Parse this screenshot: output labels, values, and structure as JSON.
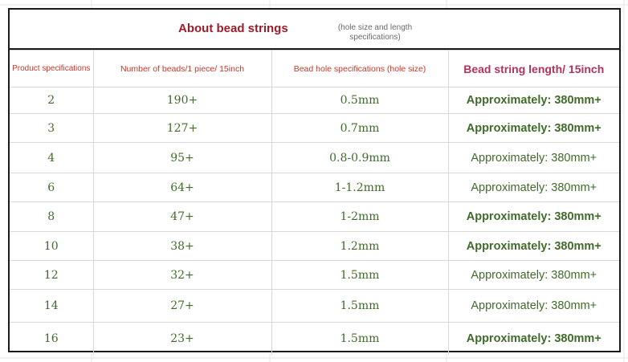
{
  "title": {
    "main": "About bead strings",
    "sub": "(hole size and length specifications)"
  },
  "headers": {
    "spec": "Product specifications",
    "beads": "Number of beads/1 piece/ 15inch",
    "hole": "Bead hole specifications (hole size)",
    "length": "Bead string length/ 15inch"
  },
  "rows": [
    {
      "spec": "2",
      "beads": "190+",
      "hole": "0.5mm",
      "length": "Approximately: 380mm+"
    },
    {
      "spec": "3",
      "beads": "127+",
      "hole": "0.7mm",
      "length": "Approximately: 380mm+"
    },
    {
      "spec": "4",
      "beads": "95+",
      "hole": "0.8-0.9mm",
      "length": "Approximately: 380mm+"
    },
    {
      "spec": "6",
      "beads": "64+",
      "hole": "1-1.2mm",
      "length": "Approximately: 380mm+"
    },
    {
      "spec": "8",
      "beads": "47+",
      "hole": "1-2mm",
      "length": "Approximately: 380mm+"
    },
    {
      "spec": "10",
      "beads": "38+",
      "hole": "1.2mm",
      "length": "Approximately: 380mm+"
    },
    {
      "spec": "12",
      "beads": "32+",
      "hole": "1.5mm",
      "length": "Approximately: 380mm+"
    },
    {
      "spec": "14",
      "beads": "27+",
      "hole": "1.5mm",
      "length": "Approximately: 380mm+"
    },
    {
      "spec": "16",
      "beads": "23+",
      "hole": "1.5mm",
      "length": "Approximately: 380mm+"
    }
  ],
  "colors": {
    "title": "#9b1d2a",
    "header_red": "#c0392b",
    "header_length": "#b0345a",
    "value_green": "#3f6b2a",
    "border": "#1a1a1a"
  }
}
